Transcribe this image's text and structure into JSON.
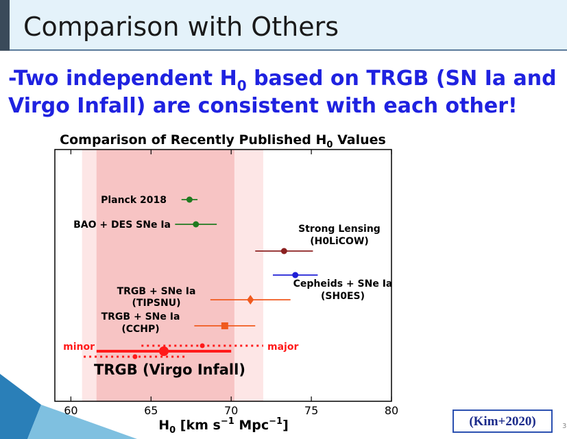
{
  "slide": {
    "title": "Comparison with Others",
    "bullet_lines": [
      [
        "-Two independent H",
        "0",
        " based on TRGB (SN Ia and"
      ],
      [
        "Virgo Infall) are consistent with each other!"
      ]
    ],
    "citation": "(Kim+2020)",
    "slide_number": "3"
  },
  "chart_data": {
    "type": "errorbar",
    "title_parts": [
      "Comparison of Recently Published H",
      "0",
      " Values"
    ],
    "xlabel_parts": [
      "H",
      "0",
      " [km s",
      "−1",
      " Mpc",
      "−1",
      "]"
    ],
    "xlim": [
      59,
      80
    ],
    "xticks": [
      60,
      65,
      70,
      75,
      80
    ],
    "bands": [
      {
        "range": [
          60.7,
          72.0
        ],
        "color": "#fde6e6"
      },
      {
        "range": [
          61.6,
          70.2
        ],
        "color": "#f7c4c4"
      }
    ],
    "series": [
      {
        "name_lines": [
          "Planck 2018"
        ],
        "value": 67.4,
        "err": 0.5,
        "color": "#1f7a1f",
        "marker": "circle"
      },
      {
        "name_lines": [
          "BAO + DES SNe Ia"
        ],
        "value": 67.8,
        "err": 1.3,
        "color": "#1f7a1f",
        "marker": "circle"
      },
      {
        "name_lines": [
          "Strong Lensing",
          "(H0LiCOW)"
        ],
        "value": 73.3,
        "err": 1.8,
        "color": "#8b2020",
        "marker": "circle"
      },
      {
        "name_lines": [
          "Cepheids + SNe Ia",
          "(SH0ES)"
        ],
        "value": 74.0,
        "err": 1.4,
        "color": "#1f1fd6",
        "marker": "circle"
      },
      {
        "name_lines": [
          "TRGB + SNe Ia",
          "(TIPSNU)"
        ],
        "value": 71.2,
        "err": 2.5,
        "color": "#f05a1e",
        "marker": "diamond"
      },
      {
        "name_lines": [
          "TRGB + SNe Ia",
          "(CCHP)"
        ],
        "value": 69.6,
        "err": 1.9,
        "color": "#f05a1e",
        "marker": "square"
      },
      {
        "name_lines": [
          "major"
        ],
        "value": 68.2,
        "err": 3.8,
        "color": "#ff1a1a",
        "marker": "circle",
        "linestyle": "dotted"
      },
      {
        "name_lines": [
          "TRGB (Virgo Infall)"
        ],
        "value": 65.8,
        "err": 4.2,
        "color": "#ff1a1a",
        "marker": "circle"
      },
      {
        "name_lines": [
          "minor"
        ],
        "value": 64.0,
        "err": 3.2,
        "color": "#ff1a1a",
        "marker": "circle",
        "linestyle": "dotted"
      }
    ]
  }
}
